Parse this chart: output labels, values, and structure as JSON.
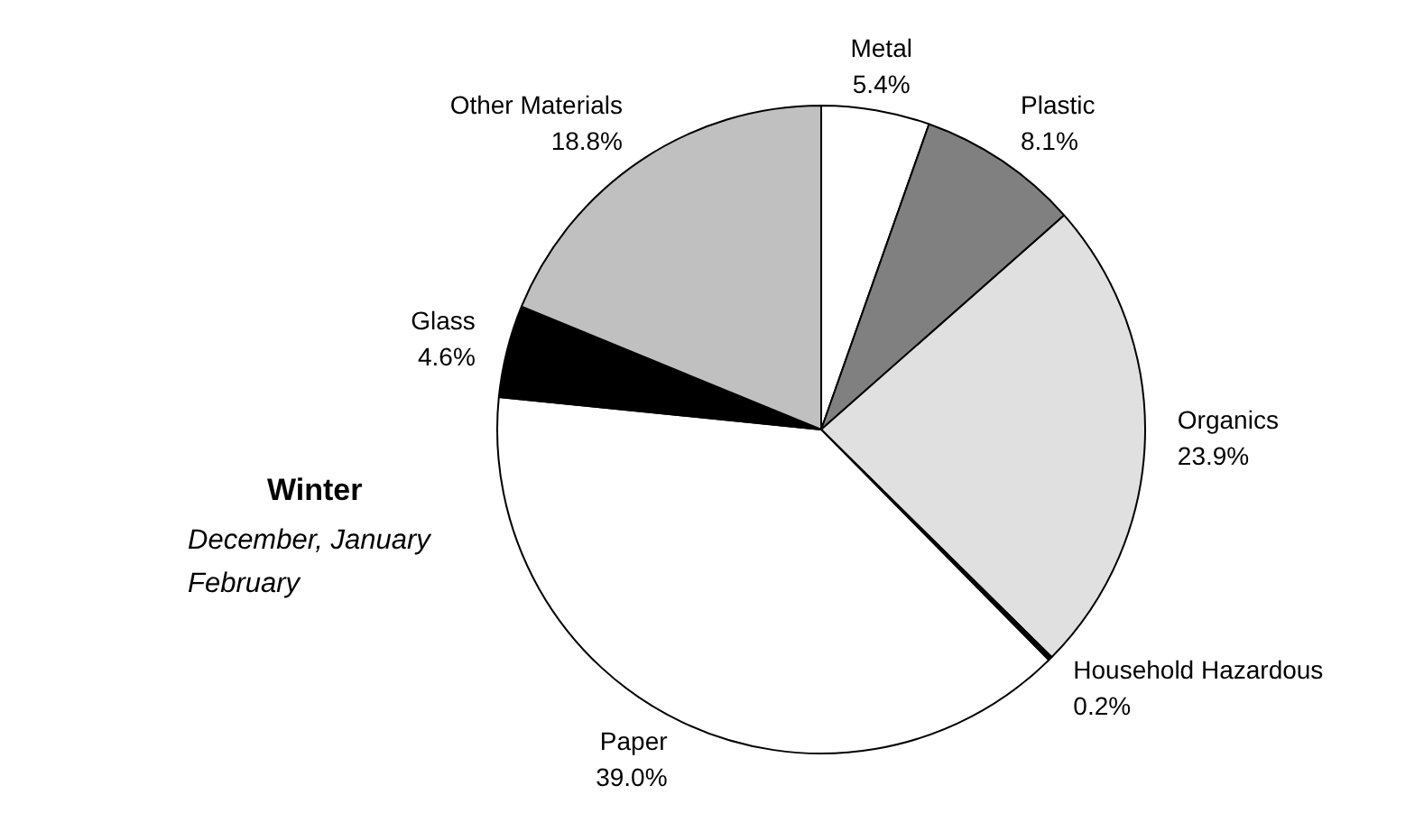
{
  "chart_data": {
    "type": "pie",
    "title": "Winter",
    "subtitle": "December, January\nFebruary",
    "categories": [
      "Metal",
      "Plastic",
      "Organics",
      "Household Hazardous",
      "Paper",
      "Glass",
      "Other Materials"
    ],
    "values": [
      5.4,
      8.1,
      23.9,
      0.2,
      39.0,
      4.6,
      18.8
    ],
    "value_labels": [
      "5.4%",
      "8.1%",
      "23.9%",
      "0.2%",
      "39.0%",
      "4.6%",
      "18.8%"
    ],
    "colors": [
      "#ffffff",
      "#808080",
      "#e0e0e0",
      "#000000",
      "#ffffff",
      "#000000",
      "#c0c0c0"
    ],
    "legend": false
  }
}
